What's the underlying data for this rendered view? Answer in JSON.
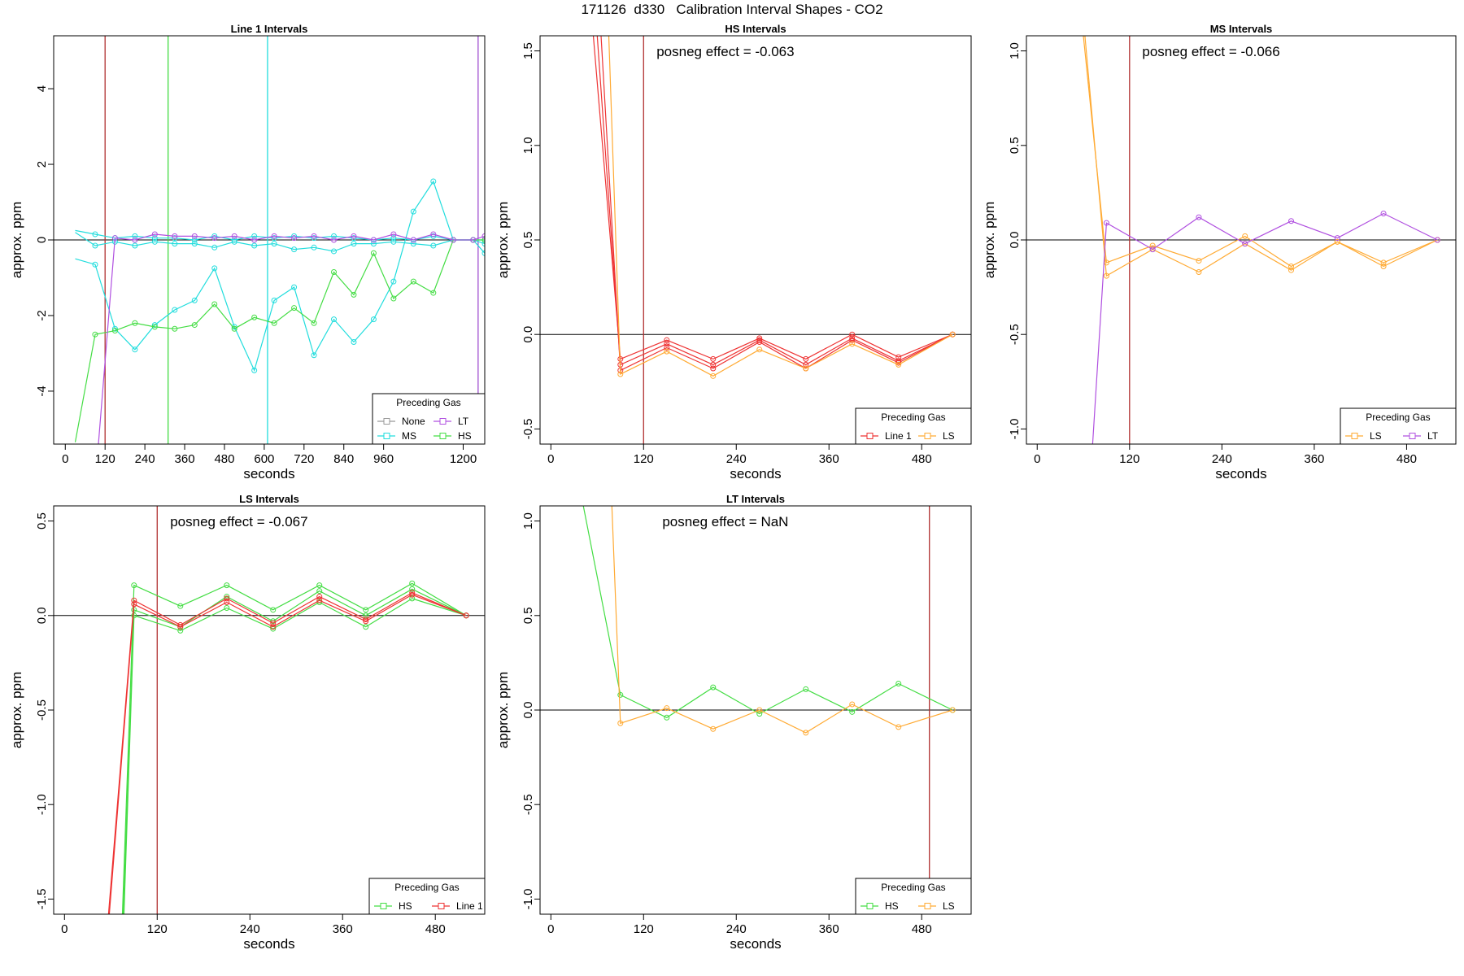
{
  "title": "171126  d330   Calibration Interval Shapes - CO2",
  "chart_data": [
    {
      "type": "line",
      "title": "Line 1 Intervals",
      "xlabel": "seconds",
      "ylabel": "approx. ppm",
      "xlim": [
        -35,
        1265
      ],
      "ylim": [
        -5.4,
        5.4
      ],
      "xticks": [
        0,
        120,
        240,
        360,
        480,
        600,
        720,
        840,
        960,
        1200
      ],
      "yticks": [
        -4,
        -2,
        0,
        2,
        4
      ],
      "vlines": [
        {
          "x": 120,
          "color": "#b03030"
        },
        {
          "x": 310,
          "color": "#44dd44"
        },
        {
          "x": 610,
          "color": "#22dddd"
        },
        {
          "x": 1245,
          "color": "#a050d0"
        }
      ],
      "hline": 0,
      "legend": {
        "title": "Preceding Gas",
        "position": "bottom-right",
        "columns": 2,
        "items": [
          {
            "name": "None",
            "color": "#999999"
          },
          {
            "name": "LT",
            "color": "#b050e0"
          },
          {
            "name": "MS",
            "color": "#22dddd"
          },
          {
            "name": "HS",
            "color": "#44dd44"
          }
        ]
      },
      "series": [
        {
          "name": "MS",
          "color": "#22dddd",
          "x": [
            30,
            90,
            150,
            210,
            270,
            330,
            390,
            450,
            510,
            570,
            630,
            690,
            750,
            810,
            870,
            930,
            990,
            1050,
            1110,
            1170,
            1230,
            1265
          ],
          "y": [
            0.25,
            0.15,
            0.05,
            0.1,
            0.05,
            0.05,
            0.0,
            0.1,
            0.0,
            0.1,
            0.05,
            0.1,
            0.05,
            0.1,
            0.05,
            0.0,
            0.05,
            0.0,
            0.1,
            0.0,
            0.0,
            -0.1
          ]
        },
        {
          "name": "MS",
          "color": "#22dddd",
          "x": [
            30,
            90,
            150,
            210,
            270,
            330,
            390,
            450,
            510,
            570,
            630,
            690,
            750,
            810,
            870,
            930,
            990,
            1050,
            1110,
            1170,
            1230,
            1265
          ],
          "y": [
            0.2,
            -0.15,
            -0.05,
            -0.15,
            -0.05,
            -0.1,
            -0.1,
            -0.2,
            -0.05,
            -0.15,
            -0.1,
            -0.25,
            -0.2,
            -0.3,
            -0.1,
            -0.1,
            -0.05,
            -0.1,
            -0.15,
            0.0,
            0.0,
            -0.35
          ]
        },
        {
          "name": "MS",
          "color": "#22dddd",
          "x": [
            30,
            90,
            150,
            210,
            270,
            330,
            390,
            450,
            510,
            570,
            630,
            690,
            750,
            810,
            870,
            930,
            990,
            1050,
            1110,
            1170,
            1230,
            1265
          ],
          "y": [
            -0.5,
            -0.65,
            -2.35,
            -2.9,
            -2.25,
            -1.85,
            -1.6,
            -0.75,
            -2.3,
            -3.45,
            -1.6,
            -1.25,
            -3.05,
            -2.1,
            -2.7,
            -2.1,
            -1.1,
            0.75,
            1.55,
            0.0,
            0.0,
            0.0
          ]
        },
        {
          "name": "HS",
          "color": "#44dd44",
          "x": [
            30,
            90,
            150,
            210,
            270,
            330,
            390,
            450,
            510,
            570,
            630,
            690,
            750,
            810,
            870,
            930,
            990,
            1050,
            1110,
            1170,
            1230,
            1265
          ],
          "y": [
            -5.35,
            -2.5,
            -2.4,
            -2.2,
            -2.3,
            -2.35,
            -2.25,
            -1.7,
            -2.35,
            -2.05,
            -2.2,
            -1.8,
            -2.2,
            -0.85,
            -1.45,
            -0.35,
            -1.55,
            -1.1,
            -1.4,
            0.0,
            0.0,
            0.0
          ]
        },
        {
          "name": "LT",
          "color": "#b050e0",
          "x": [
            100,
            150,
            210,
            270,
            330,
            390,
            450,
            510,
            570,
            630,
            690,
            750,
            810,
            870,
            930,
            990,
            1050,
            1110,
            1170,
            1230,
            1265
          ],
          "y": [
            -5.4,
            0.05,
            0.0,
            0.15,
            0.1,
            0.1,
            0.05,
            0.1,
            0.0,
            0.1,
            0.05,
            0.1,
            0.0,
            0.1,
            0.0,
            0.15,
            0.0,
            0.15,
            0.0,
            0.0,
            0.1
          ]
        }
      ]
    },
    {
      "type": "line",
      "title": "HS Intervals",
      "annotation": "posneg effect = -0.063",
      "xlabel": "seconds",
      "ylabel": "approx. ppm",
      "xlim": [
        -14,
        544
      ],
      "ylim": [
        -0.58,
        1.58
      ],
      "xticks": [
        0,
        120,
        240,
        360,
        480
      ],
      "yticks": [
        -0.5,
        0.0,
        0.5,
        1.0,
        1.5
      ],
      "vlines": [
        {
          "x": 120,
          "color": "#b03030"
        }
      ],
      "hline": 0,
      "legend": {
        "title": "Preceding Gas",
        "position": "bottom-right",
        "columns": 2,
        "items": [
          {
            "name": "Line 1",
            "color": "#ee3333"
          },
          {
            "name": "LS",
            "color": "#ffaa33"
          }
        ]
      },
      "series": [
        {
          "name": "Line 1",
          "color": "#ee3333",
          "x": [
            55,
            90,
            150,
            210,
            270,
            330,
            390,
            450,
            520
          ],
          "y": [
            1.58,
            -0.13,
            -0.03,
            -0.13,
            -0.02,
            -0.13,
            0.0,
            -0.12,
            0.0
          ]
        },
        {
          "name": "Line 1",
          "color": "#ee3333",
          "x": [
            60,
            90,
            150,
            210,
            270,
            330,
            390,
            450,
            520
          ],
          "y": [
            1.58,
            -0.16,
            -0.05,
            -0.16,
            -0.03,
            -0.16,
            -0.02,
            -0.14,
            0.0
          ]
        },
        {
          "name": "Line 1",
          "color": "#ee3333",
          "x": [
            65,
            90,
            150,
            210,
            270,
            330,
            390,
            450,
            520
          ],
          "y": [
            1.58,
            -0.19,
            -0.07,
            -0.18,
            -0.04,
            -0.18,
            -0.03,
            -0.15,
            0.0
          ]
        },
        {
          "name": "LS",
          "color": "#ffaa33",
          "x": [
            75,
            90,
            150,
            210,
            270,
            330,
            390,
            450,
            520
          ],
          "y": [
            1.58,
            -0.21,
            -0.09,
            -0.22,
            -0.08,
            -0.18,
            -0.05,
            -0.16,
            0.0
          ]
        }
      ]
    },
    {
      "type": "line",
      "title": "MS Intervals",
      "annotation": "posneg effect = -0.066",
      "xlabel": "seconds",
      "ylabel": "approx. ppm",
      "xlim": [
        -14,
        544
      ],
      "ylim": [
        -1.08,
        1.08
      ],
      "xticks": [
        0,
        120,
        240,
        360,
        480
      ],
      "yticks": [
        -1.0,
        -0.5,
        0.0,
        0.5,
        1.0
      ],
      "vlines": [
        {
          "x": 120,
          "color": "#b03030"
        }
      ],
      "hline": 0,
      "legend": {
        "title": "Preceding Gas",
        "position": "bottom-right",
        "columns": 2,
        "items": [
          {
            "name": "LS",
            "color": "#ffaa33"
          },
          {
            "name": "LT",
            "color": "#b050e0"
          }
        ]
      },
      "series": [
        {
          "name": "LS",
          "color": "#ffaa33",
          "x": [
            60,
            90,
            150,
            210,
            270,
            330,
            390,
            450,
            520
          ],
          "y": [
            1.08,
            -0.12,
            -0.03,
            -0.11,
            0.02,
            -0.14,
            -0.01,
            -0.12,
            0.0
          ]
        },
        {
          "name": "LS",
          "color": "#ffaa33",
          "x": [
            62,
            90,
            150,
            210,
            270,
            330,
            390,
            450,
            520
          ],
          "y": [
            1.08,
            -0.19,
            -0.05,
            -0.17,
            -0.02,
            -0.16,
            -0.01,
            -0.14,
            0.0
          ]
        },
        {
          "name": "LT",
          "color": "#b050e0",
          "x": [
            72,
            90,
            150,
            210,
            270,
            330,
            390,
            450,
            520
          ],
          "y": [
            -1.08,
            0.09,
            -0.05,
            0.12,
            -0.02,
            0.1,
            0.01,
            0.14,
            0.0
          ]
        }
      ]
    },
    {
      "type": "line",
      "title": "LS Intervals",
      "annotation": "posneg effect = -0.067",
      "xlabel": "seconds",
      "ylabel": "approx. ppm",
      "xlim": [
        -14,
        544
      ],
      "ylim": [
        -1.58,
        0.58
      ],
      "xticks": [
        0,
        120,
        240,
        360,
        480
      ],
      "yticks": [
        -1.5,
        -1.0,
        -0.5,
        0.0,
        0.5
      ],
      "vlines": [
        {
          "x": 120,
          "color": "#b03030"
        }
      ],
      "hline": 0,
      "legend": {
        "title": "Preceding Gas",
        "position": "bottom-right",
        "columns": 2,
        "items": [
          {
            "name": "HS",
            "color": "#44dd44"
          },
          {
            "name": "Line 1",
            "color": "#ee3333"
          }
        ]
      },
      "series": [
        {
          "name": "HS",
          "color": "#44dd44",
          "x": [
            75,
            90,
            150,
            210,
            270,
            330,
            390,
            450,
            520
          ],
          "y": [
            -1.58,
            0.16,
            0.05,
            0.16,
            0.03,
            0.16,
            0.03,
            0.17,
            0.0
          ]
        },
        {
          "name": "HS",
          "color": "#44dd44",
          "x": [
            76,
            90,
            150,
            210,
            270,
            330,
            390,
            450,
            520
          ],
          "y": [
            -1.58,
            0.03,
            -0.06,
            0.1,
            -0.03,
            0.13,
            0.0,
            0.14,
            0.0
          ]
        },
        {
          "name": "HS",
          "color": "#44dd44",
          "x": [
            77,
            90,
            150,
            210,
            270,
            330,
            390,
            450,
            520
          ],
          "y": [
            -1.58,
            0.0,
            -0.08,
            0.04,
            -0.07,
            0.07,
            -0.06,
            0.09,
            0.0
          ]
        },
        {
          "name": "Line 1",
          "color": "#ee3333",
          "x": [
            57,
            90,
            150,
            210,
            270,
            330,
            390,
            450,
            520
          ],
          "y": [
            -1.58,
            0.08,
            -0.05,
            0.09,
            -0.04,
            0.1,
            -0.02,
            0.12,
            0.0
          ]
        },
        {
          "name": "Line 1",
          "color": "#ee3333",
          "x": [
            58,
            90,
            150,
            210,
            270,
            330,
            390,
            450,
            520
          ],
          "y": [
            -1.58,
            0.06,
            -0.06,
            0.07,
            -0.06,
            0.08,
            -0.03,
            0.11,
            0.0
          ]
        }
      ]
    },
    {
      "type": "line",
      "title": "LT Intervals",
      "annotation": "posneg effect = NaN",
      "xlabel": "seconds",
      "ylabel": "approx. ppm",
      "xlim": [
        -14,
        544
      ],
      "ylim": [
        -1.08,
        1.08
      ],
      "xticks": [
        0,
        120,
        240,
        360,
        480
      ],
      "yticks": [
        -1.0,
        -0.5,
        0.0,
        0.5,
        1.0
      ],
      "vlines": [
        {
          "x": 490,
          "color": "#b03030"
        }
      ],
      "hline": 0,
      "legend": {
        "title": "Preceding Gas",
        "position": "bottom-right",
        "columns": 2,
        "items": [
          {
            "name": "HS",
            "color": "#44dd44"
          },
          {
            "name": "LS",
            "color": "#ffaa33"
          }
        ]
      },
      "series": [
        {
          "name": "HS",
          "color": "#44dd44",
          "x": [
            42,
            90,
            150,
            210,
            270,
            330,
            390,
            450,
            520
          ],
          "y": [
            1.08,
            0.08,
            -0.04,
            0.12,
            -0.02,
            0.11,
            -0.01,
            0.14,
            0.0
          ]
        },
        {
          "name": "LS",
          "color": "#ffaa33",
          "x": [
            79,
            90,
            150,
            210,
            270,
            330,
            390,
            450,
            520
          ],
          "y": [
            1.08,
            -0.07,
            0.01,
            -0.1,
            0.0,
            -0.12,
            0.03,
            -0.09,
            0.0
          ]
        }
      ]
    }
  ]
}
